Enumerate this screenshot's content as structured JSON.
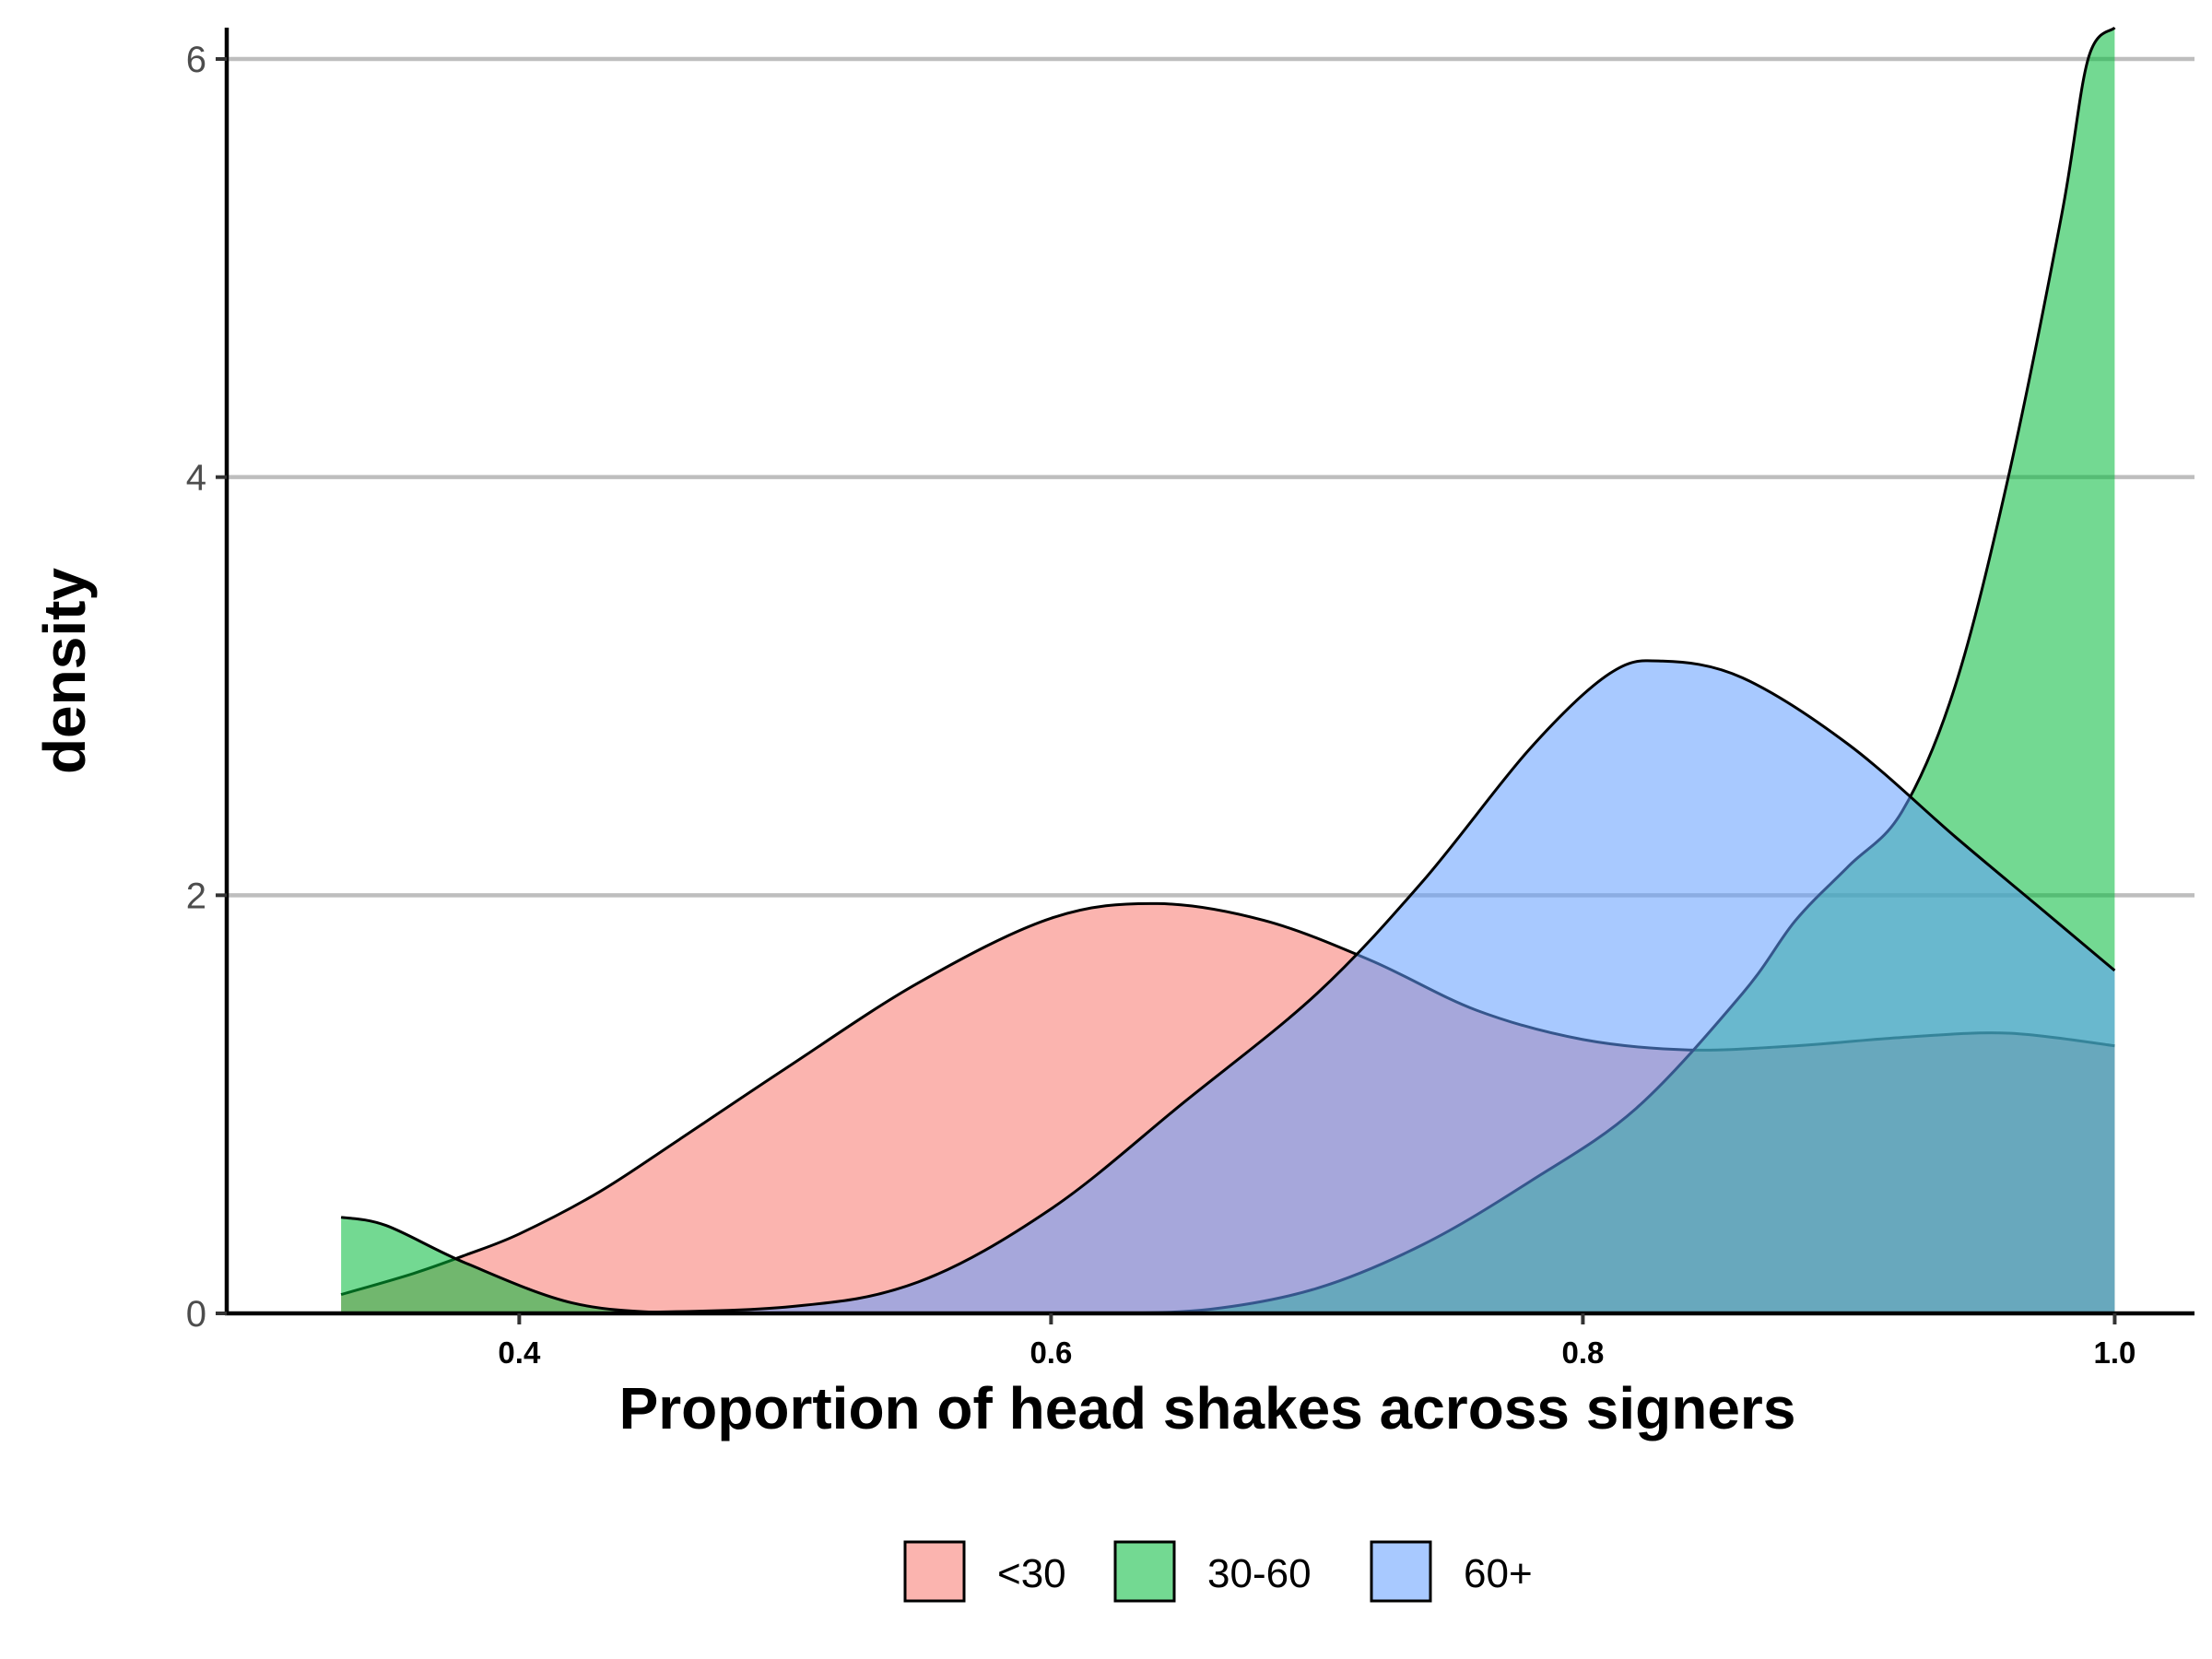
{
  "chart_data": {
    "type": "area",
    "subtype": "density",
    "title": "",
    "xlabel": "Proportion of head shakes across signers",
    "ylabel": "density",
    "xlim": [
      0.29,
      1.03
    ],
    "ylim": [
      0,
      6.15
    ],
    "x_ticks": [
      0.4,
      0.6,
      0.8,
      1.0
    ],
    "x_tick_labels": [
      "0.4",
      "0.6",
      "0.8",
      "1.0"
    ],
    "y_ticks": [
      0,
      2,
      4,
      6
    ],
    "y_tick_labels": [
      "0",
      "2",
      "4",
      "6"
    ],
    "grid": "horizontal major",
    "legend_position": "bottom",
    "series": [
      {
        "name": "<30",
        "color": "#F8766D",
        "x": [
          0.333,
          0.36,
          0.38,
          0.4,
          0.43,
          0.46,
          0.5,
          0.55,
          0.6,
          0.64,
          0.68,
          0.72,
          0.76,
          0.8,
          0.84,
          0.88,
          0.92,
          0.96,
          1.0
        ],
        "y": [
          0.09,
          0.19,
          0.28,
          0.38,
          0.58,
          0.83,
          1.17,
          1.58,
          1.89,
          1.96,
          1.88,
          1.69,
          1.45,
          1.31,
          1.26,
          1.28,
          1.32,
          1.34,
          1.28
        ]
      },
      {
        "name": "30-60",
        "color": "#00BA38",
        "x": [
          0.333,
          0.35,
          0.38,
          0.42,
          0.46,
          0.5,
          0.54,
          0.58,
          0.62,
          0.66,
          0.7,
          0.74,
          0.78,
          0.82,
          0.86,
          0.88,
          0.9,
          0.92,
          0.94,
          0.96,
          0.98,
          0.99,
          1.0
        ],
        "y": [
          0.46,
          0.42,
          0.24,
          0.05,
          0.0,
          0.0,
          0.0,
          0.0,
          0.0,
          0.02,
          0.12,
          0.33,
          0.63,
          0.98,
          1.53,
          1.88,
          2.14,
          2.4,
          3.0,
          4.0,
          5.25,
          6.0,
          6.15
        ]
      },
      {
        "name": "60+",
        "color": "#619CFF",
        "x": [
          0.42,
          0.5,
          0.55,
          0.6,
          0.65,
          0.7,
          0.74,
          0.78,
          0.81,
          0.83,
          0.86,
          0.9,
          0.94,
          0.97,
          1.0
        ],
        "y": [
          0.0,
          0.03,
          0.15,
          0.5,
          1.01,
          1.53,
          2.07,
          2.7,
          3.06,
          3.12,
          3.04,
          2.72,
          2.28,
          1.96,
          1.64
        ]
      }
    ]
  }
}
